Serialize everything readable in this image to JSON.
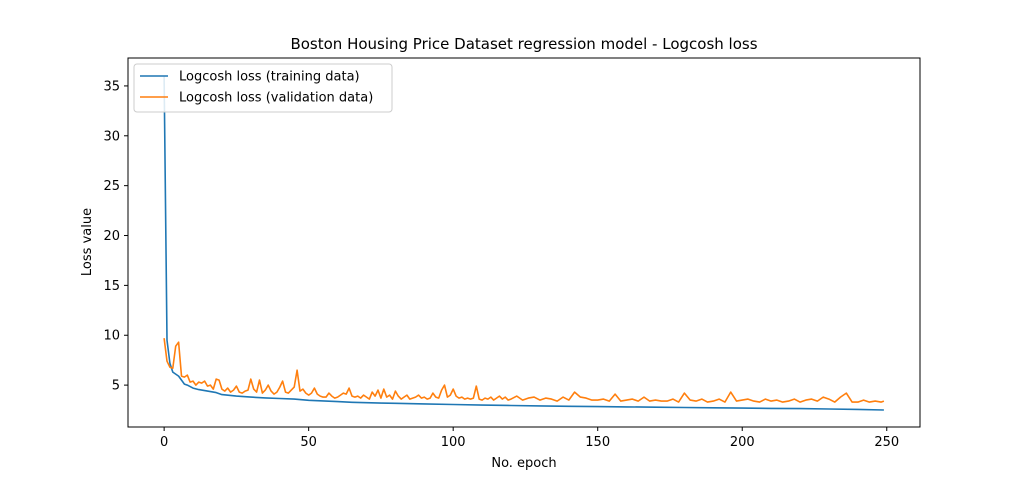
{
  "chart_data": {
    "type": "line",
    "title": "Boston Housing Price Dataset regression model - Logcosh loss",
    "xlabel": "No. epoch",
    "ylabel": "Loss value",
    "xlim": [
      -12.5,
      261.5
    ],
    "ylim": [
      0.8,
      37.8
    ],
    "xticks": [
      0,
      50,
      100,
      150,
      200,
      250
    ],
    "yticks": [
      5,
      10,
      15,
      20,
      25,
      30,
      35
    ],
    "grid": false,
    "legend_position": "top-left",
    "series": [
      {
        "name": "Logcosh loss (training data)",
        "color": "#1f77b4",
        "points": [
          [
            0,
            36
          ],
          [
            1,
            9.5
          ],
          [
            2,
            7.2
          ],
          [
            3,
            6.3
          ],
          [
            4,
            6.1
          ],
          [
            5,
            5.9
          ],
          [
            6,
            5.5
          ],
          [
            7,
            5.1
          ],
          [
            8,
            5.0
          ],
          [
            10,
            4.7
          ],
          [
            12,
            4.55
          ],
          [
            15,
            4.4
          ],
          [
            18,
            4.25
          ],
          [
            20,
            4.05
          ],
          [
            25,
            3.9
          ],
          [
            30,
            3.8
          ],
          [
            35,
            3.72
          ],
          [
            40,
            3.66
          ],
          [
            45,
            3.6
          ],
          [
            50,
            3.48
          ],
          [
            55,
            3.42
          ],
          [
            60,
            3.35
          ],
          [
            65,
            3.28
          ],
          [
            70,
            3.24
          ],
          [
            75,
            3.2
          ],
          [
            80,
            3.18
          ],
          [
            90,
            3.12
          ],
          [
            100,
            3.06
          ],
          [
            110,
            3.0
          ],
          [
            120,
            2.96
          ],
          [
            130,
            2.92
          ],
          [
            140,
            2.88
          ],
          [
            150,
            2.85
          ],
          [
            160,
            2.82
          ],
          [
            170,
            2.79
          ],
          [
            180,
            2.76
          ],
          [
            190,
            2.73
          ],
          [
            200,
            2.7
          ],
          [
            210,
            2.67
          ],
          [
            220,
            2.64
          ],
          [
            230,
            2.6
          ],
          [
            240,
            2.56
          ],
          [
            249,
            2.5
          ]
        ]
      },
      {
        "name": "Logcosh loss (validation data)",
        "color": "#ff7f0e",
        "points": [
          [
            0,
            9.7
          ],
          [
            1,
            7.4
          ],
          [
            2,
            6.8
          ],
          [
            3,
            6.7
          ],
          [
            4,
            8.9
          ],
          [
            5,
            9.3
          ],
          [
            6,
            5.9
          ],
          [
            7,
            5.8
          ],
          [
            8,
            6.0
          ],
          [
            9,
            5.3
          ],
          [
            10,
            5.4
          ],
          [
            11,
            5.0
          ],
          [
            12,
            5.3
          ],
          [
            13,
            5.2
          ],
          [
            14,
            5.4
          ],
          [
            15,
            4.9
          ],
          [
            16,
            5.0
          ],
          [
            17,
            4.6
          ],
          [
            18,
            5.6
          ],
          [
            19,
            5.5
          ],
          [
            20,
            4.6
          ],
          [
            21,
            4.4
          ],
          [
            22,
            4.7
          ],
          [
            23,
            4.3
          ],
          [
            24,
            4.5
          ],
          [
            25,
            4.9
          ],
          [
            26,
            4.3
          ],
          [
            27,
            4.2
          ],
          [
            28,
            4.4
          ],
          [
            29,
            4.5
          ],
          [
            30,
            5.6
          ],
          [
            31,
            4.6
          ],
          [
            32,
            4.3
          ],
          [
            33,
            5.5
          ],
          [
            34,
            4.2
          ],
          [
            35,
            4.5
          ],
          [
            36,
            5.0
          ],
          [
            37,
            4.4
          ],
          [
            38,
            4.1
          ],
          [
            39,
            4.3
          ],
          [
            40,
            4.8
          ],
          [
            41,
            5.4
          ],
          [
            42,
            4.3
          ],
          [
            43,
            4.2
          ],
          [
            44,
            4.5
          ],
          [
            45,
            4.8
          ],
          [
            46,
            6.5
          ],
          [
            47,
            4.4
          ],
          [
            48,
            4.6
          ],
          [
            49,
            4.2
          ],
          [
            50,
            4.0
          ],
          [
            51,
            4.2
          ],
          [
            52,
            4.7
          ],
          [
            53,
            4.1
          ],
          [
            54,
            3.9
          ],
          [
            55,
            3.8
          ],
          [
            56,
            3.8
          ],
          [
            57,
            4.2
          ],
          [
            58,
            3.9
          ],
          [
            59,
            3.7
          ],
          [
            60,
            3.8
          ],
          [
            61,
            4.0
          ],
          [
            62,
            4.2
          ],
          [
            63,
            4.1
          ],
          [
            64,
            4.7
          ],
          [
            65,
            3.9
          ],
          [
            66,
            3.8
          ],
          [
            67,
            3.9
          ],
          [
            68,
            3.7
          ],
          [
            69,
            4.0
          ],
          [
            70,
            3.8
          ],
          [
            71,
            3.6
          ],
          [
            72,
            4.3
          ],
          [
            73,
            3.9
          ],
          [
            74,
            4.5
          ],
          [
            75,
            3.7
          ],
          [
            76,
            4.6
          ],
          [
            77,
            3.8
          ],
          [
            78,
            4.0
          ],
          [
            79,
            3.6
          ],
          [
            80,
            4.4
          ],
          [
            81,
            3.9
          ],
          [
            82,
            3.6
          ],
          [
            83,
            3.8
          ],
          [
            84,
            4.0
          ],
          [
            85,
            3.6
          ],
          [
            86,
            3.7
          ],
          [
            87,
            3.8
          ],
          [
            88,
            4.0
          ],
          [
            89,
            3.7
          ],
          [
            90,
            3.8
          ],
          [
            91,
            3.6
          ],
          [
            92,
            3.7
          ],
          [
            93,
            4.2
          ],
          [
            94,
            3.8
          ],
          [
            95,
            3.7
          ],
          [
            96,
            4.5
          ],
          [
            97,
            5.0
          ],
          [
            98,
            3.8
          ],
          [
            99,
            4.0
          ],
          [
            100,
            4.6
          ],
          [
            101,
            3.9
          ],
          [
            102,
            3.7
          ],
          [
            103,
            3.8
          ],
          [
            104,
            3.6
          ],
          [
            105,
            3.7
          ],
          [
            106,
            3.6
          ],
          [
            107,
            3.7
          ],
          [
            108,
            4.9
          ],
          [
            109,
            3.6
          ],
          [
            110,
            3.5
          ],
          [
            111,
            3.7
          ],
          [
            112,
            3.6
          ],
          [
            113,
            3.8
          ],
          [
            114,
            3.5
          ],
          [
            115,
            3.7
          ],
          [
            116,
            3.9
          ],
          [
            117,
            3.6
          ],
          [
            118,
            3.8
          ],
          [
            119,
            3.5
          ],
          [
            120,
            3.6
          ],
          [
            122,
            3.9
          ],
          [
            124,
            3.5
          ],
          [
            126,
            3.7
          ],
          [
            128,
            3.8
          ],
          [
            130,
            3.5
          ],
          [
            132,
            3.7
          ],
          [
            134,
            3.6
          ],
          [
            136,
            3.4
          ],
          [
            138,
            3.8
          ],
          [
            140,
            3.5
          ],
          [
            142,
            4.3
          ],
          [
            144,
            3.8
          ],
          [
            146,
            3.7
          ],
          [
            148,
            3.5
          ],
          [
            150,
            3.5
          ],
          [
            152,
            3.6
          ],
          [
            154,
            3.4
          ],
          [
            156,
            4.1
          ],
          [
            158,
            3.4
          ],
          [
            160,
            3.5
          ],
          [
            162,
            3.6
          ],
          [
            164,
            3.4
          ],
          [
            166,
            3.8
          ],
          [
            168,
            3.4
          ],
          [
            170,
            3.5
          ],
          [
            172,
            3.4
          ],
          [
            174,
            3.4
          ],
          [
            176,
            3.6
          ],
          [
            178,
            3.3
          ],
          [
            180,
            4.2
          ],
          [
            182,
            3.5
          ],
          [
            184,
            3.4
          ],
          [
            186,
            3.6
          ],
          [
            188,
            3.3
          ],
          [
            190,
            3.4
          ],
          [
            192,
            3.6
          ],
          [
            194,
            3.3
          ],
          [
            196,
            4.3
          ],
          [
            198,
            3.4
          ],
          [
            200,
            3.5
          ],
          [
            202,
            3.6
          ],
          [
            204,
            3.4
          ],
          [
            206,
            3.3
          ],
          [
            208,
            3.6
          ],
          [
            210,
            3.4
          ],
          [
            212,
            3.5
          ],
          [
            214,
            3.3
          ],
          [
            216,
            3.4
          ],
          [
            218,
            3.6
          ],
          [
            220,
            3.3
          ],
          [
            222,
            3.5
          ],
          [
            224,
            3.6
          ],
          [
            226,
            3.4
          ],
          [
            228,
            3.8
          ],
          [
            230,
            3.6
          ],
          [
            232,
            3.3
          ],
          [
            234,
            3.8
          ],
          [
            236,
            4.2
          ],
          [
            238,
            3.3
          ],
          [
            240,
            3.3
          ],
          [
            242,
            3.5
          ],
          [
            244,
            3.3
          ],
          [
            246,
            3.4
          ],
          [
            248,
            3.3
          ],
          [
            249,
            3.4
          ]
        ]
      }
    ]
  }
}
